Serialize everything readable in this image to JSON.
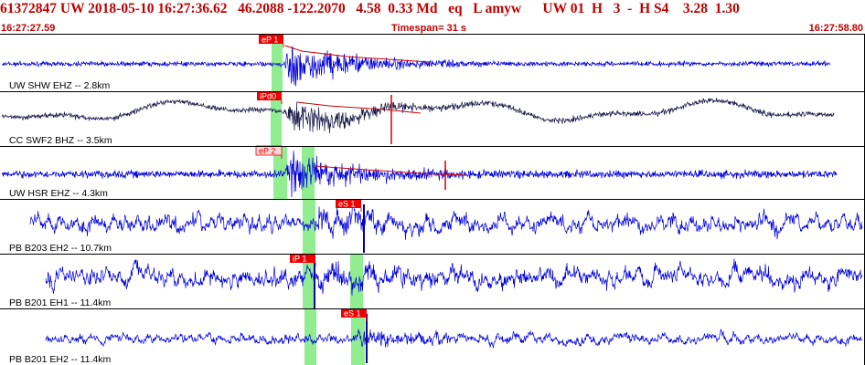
{
  "header": {
    "text": "61372847 UW 2018-05-10 16:27:36.62   46.2088 -122.2070   4.58  0.33 Md   eq   L amyw      UW 01  H   3  -  H S4    3.28  1.30",
    "start_time": "16:27:27.59",
    "end_time": "16:27:58.80",
    "timespan_label": "Timespan=  31 s"
  },
  "colors": {
    "text": "#c00000",
    "trace": "#0000dd",
    "trace_dark": "#1a1a4a",
    "pick_box": "#ee0000",
    "pick_box_light": "#ffd8d8",
    "green_window": "#90ee90",
    "coda_line": "#cc0000",
    "divider": "#000000"
  },
  "channels": [
    {
      "label": "UW SHW EHZ -- 2.8km",
      "pick": "eP 1",
      "trace_color": "trace"
    },
    {
      "label": "CC SWF2 BHZ -- 3.5km",
      "pick": "iPd0",
      "trace_color": "trace_dark"
    },
    {
      "label": "UW HSR EHZ -- 4.3km",
      "pick": "eP 2",
      "trace_color": "trace"
    },
    {
      "label": "PB B203 EH2 -- 10.7km",
      "pick": "eS 1",
      "trace_color": "trace"
    },
    {
      "label": "PB B201 EH1 -- 11.4km",
      "pick": "iP 1",
      "trace_color": "trace"
    },
    {
      "label": "PB B201 EH2 -- 11.4km",
      "pick": "eS 1",
      "trace_color": "trace"
    }
  ]
}
